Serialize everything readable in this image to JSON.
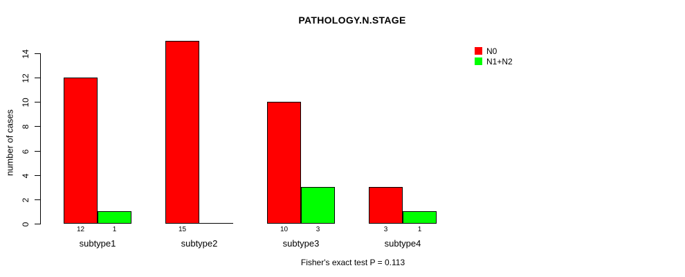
{
  "chart_data": {
    "type": "bar",
    "title": "PATHOLOGY.N.STAGE",
    "xlabel": "",
    "ylabel": "number of cases",
    "categories": [
      "subtype1",
      "subtype2",
      "subtype3",
      "subtype4"
    ],
    "series": [
      {
        "name": "N0",
        "color": "#ff0000",
        "values": [
          12,
          15,
          10,
          3
        ]
      },
      {
        "name": "N1+N2",
        "color": "#00ff00",
        "values": [
          1,
          0,
          3,
          1
        ]
      }
    ],
    "y_ticks": [
      0,
      2,
      4,
      6,
      8,
      10,
      12,
      14
    ],
    "ylim": [
      0,
      15
    ],
    "grid": false,
    "legend_position": "top-right",
    "bar_value_labels_hidden_when_zero": true,
    "footnote": "Fisher's exact test P = 0.113"
  }
}
